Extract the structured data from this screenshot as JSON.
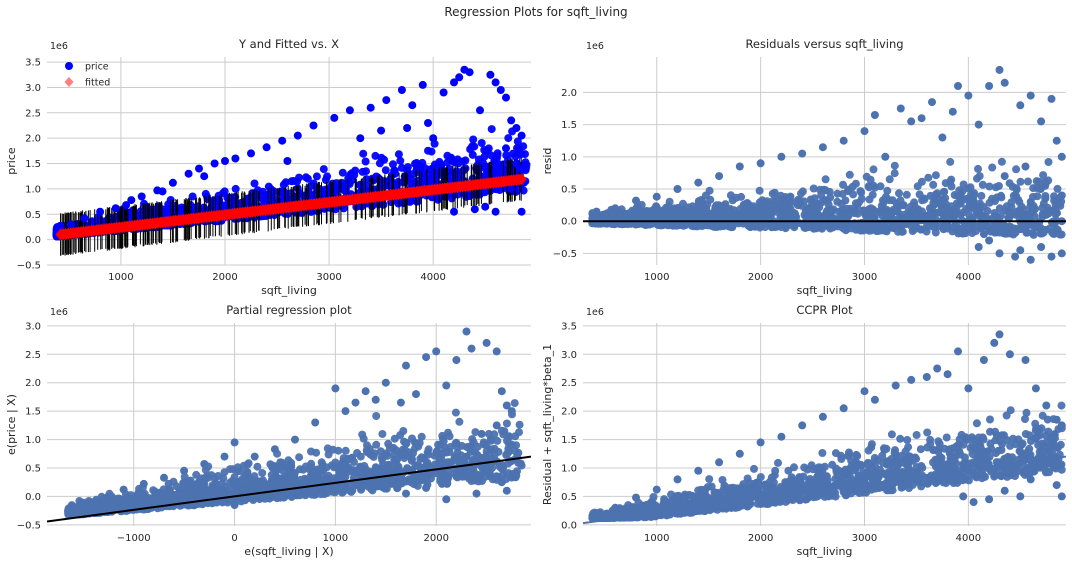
{
  "suptitle": "Regression Plots for sqft_living",
  "chart_data": [
    {
      "type": "scatter",
      "title": "Y and Fitted vs. X",
      "xlabel": "sqft_living",
      "ylabel": "price",
      "offset_text": "1e6",
      "xlim": [
        290,
        4940
      ],
      "ylim": [
        -0.5,
        3.6
      ],
      "xticks": [
        1000,
        2000,
        3000,
        4000
      ],
      "yticks": [
        -0.5,
        0.0,
        0.5,
        1.0,
        1.5,
        2.0,
        2.5,
        3.0,
        3.5
      ],
      "xtick_labels": [
        "1000",
        "2000",
        "3000",
        "4000"
      ],
      "ytick_labels": [
        "−0.5",
        "0.0",
        "0.5",
        "1.0",
        "1.5",
        "2.0",
        "2.5",
        "3.0",
        "3.5"
      ],
      "grid": true,
      "legend": {
        "placement": "top-left",
        "entries": [
          {
            "label": "price",
            "marker": "circle",
            "color": "#0000ff"
          },
          {
            "label": "fitted",
            "marker": "diamond",
            "color": "#ff0000"
          }
        ]
      },
      "series": [
        {
          "name": "price",
          "kind": "points",
          "color": "#0000ff",
          "points": [
            [
              420,
              0.27
            ],
            [
              520,
              0.3
            ],
            [
              650,
              0.42
            ],
            [
              800,
              0.55
            ],
            [
              950,
              0.62
            ],
            [
              1050,
              0.68
            ],
            [
              1200,
              0.85
            ],
            [
              1350,
              0.97
            ],
            [
              1500,
              1.12
            ],
            [
              1650,
              1.3
            ],
            [
              1750,
              1.4
            ],
            [
              1900,
              1.5
            ],
            [
              2000,
              1.55
            ],
            [
              2100,
              1.6
            ],
            [
              2250,
              1.7
            ],
            [
              2400,
              1.82
            ],
            [
              2550,
              1.95
            ],
            [
              2700,
              2.05
            ],
            [
              2850,
              2.25
            ],
            [
              3050,
              2.4
            ],
            [
              3200,
              2.55
            ],
            [
              3400,
              2.6
            ],
            [
              3550,
              2.75
            ],
            [
              3700,
              2.95
            ],
            [
              3750,
              2.2
            ],
            [
              3800,
              2.65
            ],
            [
              3900,
              3.05
            ],
            [
              3950,
              2.3
            ],
            [
              4000,
              2.0
            ],
            [
              4100,
              2.9
            ],
            [
              4200,
              3.1
            ],
            [
              4250,
              3.2
            ],
            [
              4300,
              3.35
            ],
            [
              4350,
              3.3
            ],
            [
              4450,
              2.55
            ],
            [
              4550,
              3.25
            ],
            [
              4600,
              3.1
            ],
            [
              4650,
              2.95
            ],
            [
              4700,
              2.8
            ],
            [
              4750,
              2.35
            ],
            [
              4800,
              2.2
            ],
            [
              4850,
              2.05
            ],
            [
              4700,
              1.8
            ],
            [
              4800,
              1.5
            ],
            [
              4850,
              1.4
            ],
            [
              4750,
              1.0
            ],
            [
              4600,
              0.55
            ],
            [
              4500,
              0.65
            ],
            [
              4850,
              0.55
            ],
            [
              4400,
              0.6
            ],
            [
              4200,
              0.55
            ],
            [
              3300,
              2.0
            ],
            [
              3500,
              2.15
            ],
            [
              2600,
              1.55
            ],
            [
              1400,
              0.95
            ],
            [
              1100,
              0.78
            ],
            [
              1800,
              1.25
            ]
          ]
        },
        {
          "name": "fitted",
          "kind": "line",
          "color": "#ff0000",
          "x": [
            420,
            4850
          ],
          "y": [
            0.1,
            1.19
          ]
        },
        {
          "name": "prediction interval",
          "kind": "vertical-lines",
          "color": "#000000"
        }
      ]
    },
    {
      "type": "scatter",
      "title": "Residuals versus sqft_living",
      "xlabel": "sqft_living",
      "ylabel": "resid",
      "offset_text": "1e6",
      "xlim": [
        290,
        4940
      ],
      "ylim": [
        -0.68,
        2.55
      ],
      "xticks": [
        1000,
        2000,
        3000,
        4000
      ],
      "yticks": [
        -0.5,
        0.0,
        0.5,
        1.0,
        1.5,
        2.0
      ],
      "xtick_labels": [
        "1000",
        "2000",
        "3000",
        "4000"
      ],
      "ytick_labels": [
        "−0.5",
        "0.0",
        "0.5",
        "1.0",
        "1.5",
        "2.0"
      ],
      "grid": true,
      "series": [
        {
          "name": "resid",
          "kind": "points",
          "color": "#4c72b0",
          "points": [
            [
              420,
              0.15
            ],
            [
              600,
              0.2
            ],
            [
              800,
              0.32
            ],
            [
              1000,
              0.38
            ],
            [
              1200,
              0.5
            ],
            [
              1400,
              0.6
            ],
            [
              1600,
              0.7
            ],
            [
              1800,
              0.85
            ],
            [
              2000,
              0.9
            ],
            [
              2200,
              1.0
            ],
            [
              2400,
              1.05
            ],
            [
              2600,
              1.15
            ],
            [
              2800,
              1.25
            ],
            [
              3000,
              1.4
            ],
            [
              3100,
              1.65
            ],
            [
              3200,
              1.0
            ],
            [
              3350,
              1.75
            ],
            [
              3450,
              1.55
            ],
            [
              3550,
              1.6
            ],
            [
              3650,
              1.85
            ],
            [
              3750,
              1.3
            ],
            [
              3850,
              1.7
            ],
            [
              3900,
              2.1
            ],
            [
              4000,
              1.95
            ],
            [
              4100,
              1.5
            ],
            [
              4200,
              2.1
            ],
            [
              4300,
              2.35
            ],
            [
              4350,
              2.15
            ],
            [
              4500,
              1.8
            ],
            [
              4600,
              1.95
            ],
            [
              4700,
              1.55
            ],
            [
              4800,
              1.9
            ],
            [
              4850,
              1.25
            ],
            [
              4900,
              1.0
            ],
            [
              4600,
              0.3
            ],
            [
              4650,
              -0.1
            ],
            [
              4700,
              -0.4
            ],
            [
              4800,
              -0.55
            ],
            [
              4900,
              -0.5
            ],
            [
              4500,
              -0.45
            ],
            [
              4300,
              -0.5
            ],
            [
              4200,
              -0.3
            ],
            [
              4100,
              -0.4
            ],
            [
              4400,
              0.1
            ],
            [
              4550,
              0.85
            ],
            [
              4350,
              0.7
            ],
            [
              4900,
              0.4
            ],
            [
              4750,
              0.1
            ],
            [
              4050,
              0.4
            ],
            [
              4150,
              -0.2
            ],
            [
              4450,
              -0.55
            ],
            [
              4600,
              -0.6
            ],
            [
              4900,
              0.0
            ]
          ]
        },
        {
          "name": "zero line",
          "kind": "hline",
          "color": "#000000",
          "y": 0.0
        }
      ]
    },
    {
      "type": "scatter",
      "title": "Partial regression plot",
      "xlabel": "e(sqft_living | X)",
      "ylabel": "e(price | X)",
      "offset_text": "1e6",
      "xlim": [
        -1860,
        2940
      ],
      "ylim": [
        -0.52,
        3.05
      ],
      "xticks": [
        -1000,
        0,
        1000,
        2000
      ],
      "yticks": [
        -0.5,
        0.0,
        0.5,
        1.0,
        1.5,
        2.0,
        2.5,
        3.0
      ],
      "xtick_labels": [
        "−1000",
        "0",
        "1000",
        "2000"
      ],
      "ytick_labels": [
        "−0.5",
        "0.0",
        "0.5",
        "1.0",
        "1.5",
        "2.0",
        "2.5",
        "3.0"
      ],
      "grid": true,
      "series": [
        {
          "name": "partial residuals",
          "kind": "points",
          "color": "#4c72b0",
          "points": [
            [
              -1640,
              -0.28
            ],
            [
              -1500,
              -0.2
            ],
            [
              -1300,
              -0.05
            ],
            [
              -1100,
              0.12
            ],
            [
              -900,
              0.22
            ],
            [
              -700,
              0.33
            ],
            [
              -500,
              0.45
            ],
            [
              -300,
              0.57
            ],
            [
              -100,
              0.7
            ],
            [
              0,
              0.95
            ],
            [
              200,
              0.7
            ],
            [
              400,
              0.83
            ],
            [
              600,
              1.0
            ],
            [
              800,
              1.3
            ],
            [
              1000,
              1.9
            ],
            [
              1100,
              1.5
            ],
            [
              1200,
              1.65
            ],
            [
              1300,
              1.85
            ],
            [
              1400,
              1.7
            ],
            [
              1500,
              2.0
            ],
            [
              1650,
              1.65
            ],
            [
              1700,
              2.3
            ],
            [
              1800,
              1.8
            ],
            [
              1900,
              2.45
            ],
            [
              2000,
              2.55
            ],
            [
              2100,
              1.95
            ],
            [
              2200,
              2.4
            ],
            [
              2300,
              2.9
            ],
            [
              2350,
              2.6
            ],
            [
              2500,
              2.7
            ],
            [
              2600,
              2.55
            ],
            [
              2650,
              1.85
            ],
            [
              2700,
              1.6
            ],
            [
              2750,
              1.5
            ],
            [
              2600,
              1.25
            ],
            [
              2450,
              1.1
            ],
            [
              2300,
              0.7
            ],
            [
              2200,
              0.35
            ],
            [
              2400,
              0.05
            ],
            [
              2650,
              0.25
            ],
            [
              2700,
              0.1
            ],
            [
              2100,
              -0.05
            ],
            [
              1900,
              0.15
            ],
            [
              1700,
              0.05
            ],
            [
              1500,
              0.3
            ],
            [
              1200,
              0.2
            ],
            [
              800,
              0.1
            ],
            [
              400,
              0.0
            ],
            [
              0,
              -0.15
            ]
          ]
        },
        {
          "name": "fit",
          "kind": "line",
          "color": "#000000",
          "x": [
            -1860,
            2940
          ],
          "y": [
            -0.44,
            0.7
          ]
        }
      ]
    },
    {
      "type": "scatter",
      "title": "CCPR Plot",
      "xlabel": "sqft_living",
      "ylabel": "Residual + sqft_living*beta_1",
      "offset_text": "1e6",
      "xlim": [
        290,
        4940
      ],
      "ylim": [
        -0.02,
        3.55
      ],
      "xticks": [
        1000,
        2000,
        3000,
        4000
      ],
      "yticks": [
        0.0,
        0.5,
        1.0,
        1.5,
        2.0,
        2.5,
        3.0,
        3.5
      ],
      "xtick_labels": [
        "1000",
        "2000",
        "3000",
        "4000"
      ],
      "ytick_labels": [
        "0.0",
        "0.5",
        "1.0",
        "1.5",
        "2.0",
        "2.5",
        "3.0",
        "3.5"
      ],
      "grid": true,
      "series": [
        {
          "name": "ccpr",
          "kind": "points",
          "color": "#4c72b0",
          "points": [
            [
              420,
              0.2
            ],
            [
              600,
              0.3
            ],
            [
              800,
              0.48
            ],
            [
              1000,
              0.62
            ],
            [
              1200,
              0.8
            ],
            [
              1400,
              0.95
            ],
            [
              1600,
              1.1
            ],
            [
              1800,
              1.25
            ],
            [
              2000,
              1.45
            ],
            [
              2200,
              1.55
            ],
            [
              2400,
              1.75
            ],
            [
              2600,
              1.9
            ],
            [
              2800,
              2.05
            ],
            [
              3000,
              2.35
            ],
            [
              3100,
              2.2
            ],
            [
              3300,
              2.45
            ],
            [
              3450,
              2.55
            ],
            [
              3600,
              2.6
            ],
            [
              3700,
              2.75
            ],
            [
              3800,
              2.65
            ],
            [
              3900,
              3.05
            ],
            [
              4000,
              2.4
            ],
            [
              4150,
              2.9
            ],
            [
              4250,
              3.2
            ],
            [
              4300,
              3.35
            ],
            [
              4400,
              3.0
            ],
            [
              4550,
              2.9
            ],
            [
              4650,
              2.4
            ],
            [
              4750,
              2.1
            ],
            [
              4850,
              1.85
            ],
            [
              4900,
              1.75
            ],
            [
              4800,
              1.5
            ],
            [
              4700,
              1.2
            ],
            [
              4600,
              0.8
            ],
            [
              4500,
              0.5
            ],
            [
              4350,
              0.6
            ],
            [
              4850,
              0.7
            ],
            [
              4900,
              0.5
            ],
            [
              4200,
              0.45
            ],
            [
              4050,
              0.4
            ],
            [
              3950,
              0.5
            ]
          ]
        },
        {
          "name": "component fit",
          "kind": "line",
          "color": "#4c72b0",
          "x": [
            290,
            4940
          ],
          "y": [
            0.03,
            1.2
          ]
        }
      ]
    }
  ]
}
